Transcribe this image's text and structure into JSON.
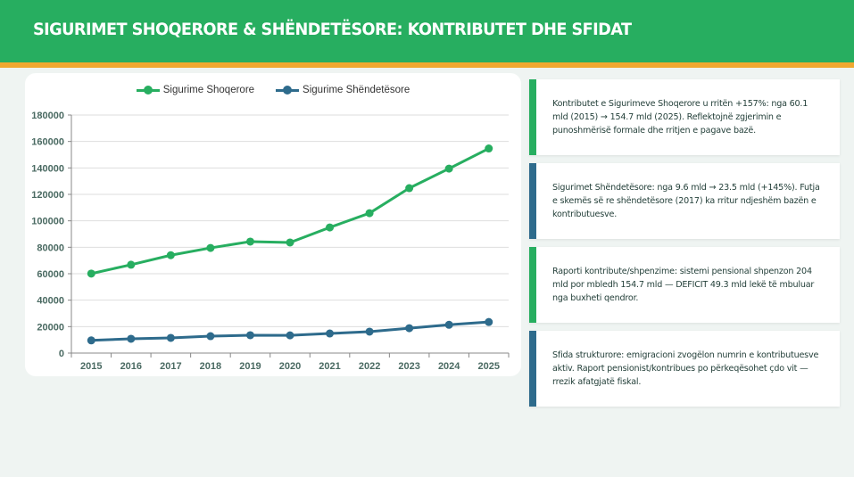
{
  "header": {
    "title": "SIGURIMET SHOQERORE & SHËNDETËSORE: KONTRIBUTET DHE SFIDAT"
  },
  "colors": {
    "header_bg": "#27ae60",
    "accent": "#f0a830",
    "series_green": "#27ae60",
    "series_blue": "#2e6b8c",
    "background": "#eff4f2"
  },
  "chart_data": {
    "type": "line",
    "title": "",
    "xlabel": "",
    "ylabel": "",
    "x": [
      "2015",
      "2016",
      "2017",
      "2018",
      "2019",
      "2020",
      "2021",
      "2022",
      "2023",
      "2024",
      "2025"
    ],
    "ylim": [
      0,
      180000
    ],
    "yticks": [
      "0",
      "20000",
      "40000",
      "60000",
      "80000",
      "100000",
      "120000",
      "140000",
      "160000",
      "180000"
    ],
    "grid": true,
    "legend_position": "top-center",
    "series": [
      {
        "name": "Sigurime Shoqerore",
        "color": "#27ae60",
        "values": [
          60100,
          66800,
          74000,
          79500,
          84300,
          83600,
          95000,
          105800,
          124700,
          139500,
          154700
        ]
      },
      {
        "name": "Sigurime Shëndetësore",
        "color": "#2e6b8c",
        "values": [
          9600,
          10800,
          11500,
          12800,
          13500,
          13400,
          14800,
          16200,
          18800,
          21400,
          23500
        ]
      }
    ]
  },
  "insights": [
    {
      "text": "Kontributet e Sigurimeve Shoqerore u rritën +157%: nga 60.1 mld (2015) → 154.7 mld (2025). Reflektojnë zgjerimin e punoshmërisë formale dhe rritjen e pagave bazë.",
      "color": "green"
    },
    {
      "text": "Sigurimet Shëndetësore: nga 9.6 mld → 23.5 mld (+145%). Futja e skemës së re shëndetësore (2017) ka rritur ndjeshëm bazën e kontributuesve.",
      "color": "blue"
    },
    {
      "text": "Raporti kontribute/shpenzime: sistemi pensional shpenzon 204 mld por mbledh 154.7 mld — DEFICIT 49.3 mld lekë të mbuluar nga buxheti qendror.",
      "color": "green"
    },
    {
      "text": "Sfida strukturore: emigracioni zvogëlon numrin e kontributuesve aktiv. Raport pensionist/kontribues po përkeqësohet çdo vit — rrezik afatgjatë fiskal.",
      "color": "blue"
    }
  ]
}
